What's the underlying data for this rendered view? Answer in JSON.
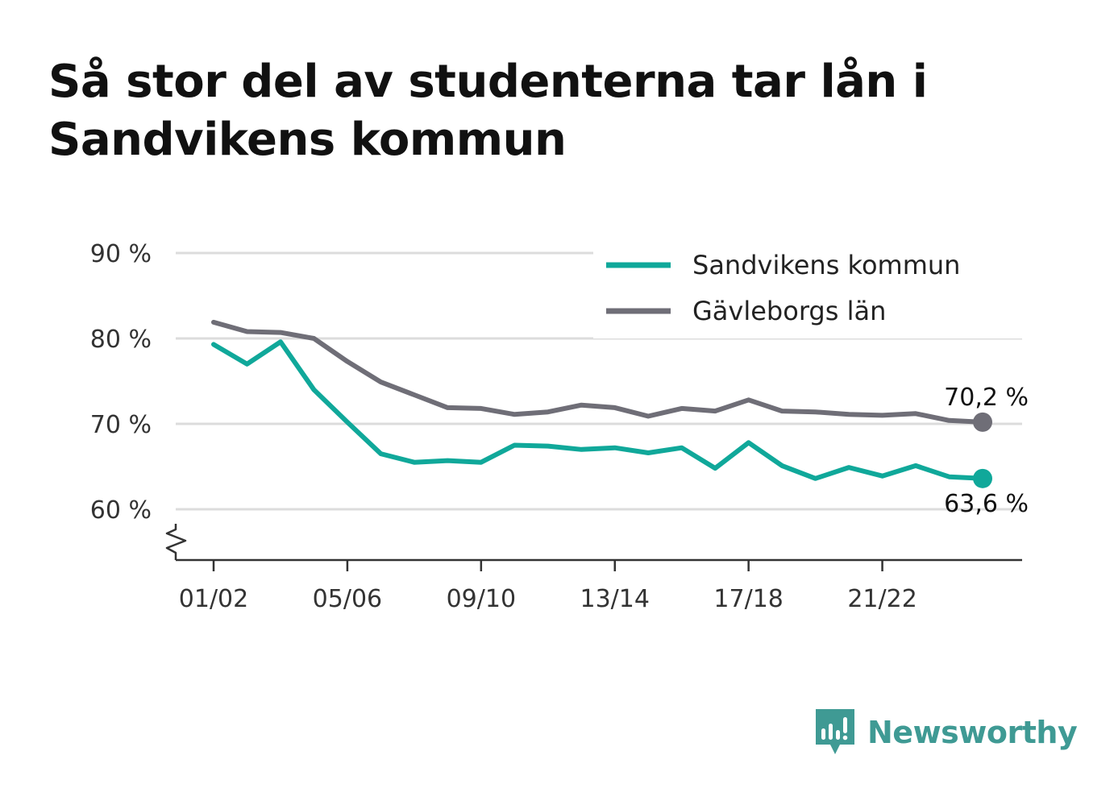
{
  "title": "Så stor del av studenterna tar lån i Sandvikens kommun",
  "brand": {
    "name": "Newsworthy",
    "icon": "newsworthy-logo-icon",
    "color": "#3f9a94"
  },
  "chart_data": {
    "type": "line",
    "title": "Så stor del av studenterna tar lån i Sandvikens kommun",
    "xlabel": "",
    "ylabel": "",
    "ylim": [
      54,
      91
    ],
    "y_ticks": [
      {
        "value": 60,
        "label": "60 %"
      },
      {
        "value": 70,
        "label": "70 %"
      },
      {
        "value": 80,
        "label": "80 %"
      },
      {
        "value": 90,
        "label": "90 %"
      }
    ],
    "y_axis_break": true,
    "x": [
      "01/02",
      "02/03",
      "03/04",
      "04/05",
      "05/06",
      "06/07",
      "07/08",
      "08/09",
      "09/10",
      "10/11",
      "11/12",
      "12/13",
      "13/14",
      "14/15",
      "15/16",
      "16/17",
      "17/18",
      "18/19",
      "19/20",
      "20/21",
      "21/22",
      "22/23",
      "23/24",
      "24/25"
    ],
    "x_ticks": [
      "01/02",
      "05/06",
      "09/10",
      "13/14",
      "17/18",
      "21/22"
    ],
    "grid": "horizontal",
    "legend_position": "top-right",
    "series": [
      {
        "name": "Sandvikens kommun",
        "color": "#10a89a",
        "values": [
          79.3,
          77.0,
          79.6,
          74.0,
          70.2,
          66.5,
          65.5,
          65.7,
          65.5,
          67.5,
          67.4,
          67.0,
          67.2,
          66.6,
          67.2,
          64.8,
          67.8,
          65.1,
          63.6,
          64.9,
          63.9,
          65.1,
          63.8,
          63.6
        ],
        "end_label": "63,6 %"
      },
      {
        "name": "Gävleborgs län",
        "color": "#6f6e77",
        "values": [
          81.9,
          80.8,
          80.7,
          80.0,
          77.3,
          74.9,
          73.4,
          71.9,
          71.8,
          71.1,
          71.4,
          72.2,
          71.9,
          70.9,
          71.8,
          71.5,
          72.8,
          71.5,
          71.4,
          71.1,
          71.0,
          71.2,
          70.4,
          70.2
        ],
        "end_label": "70,2 %"
      }
    ]
  }
}
